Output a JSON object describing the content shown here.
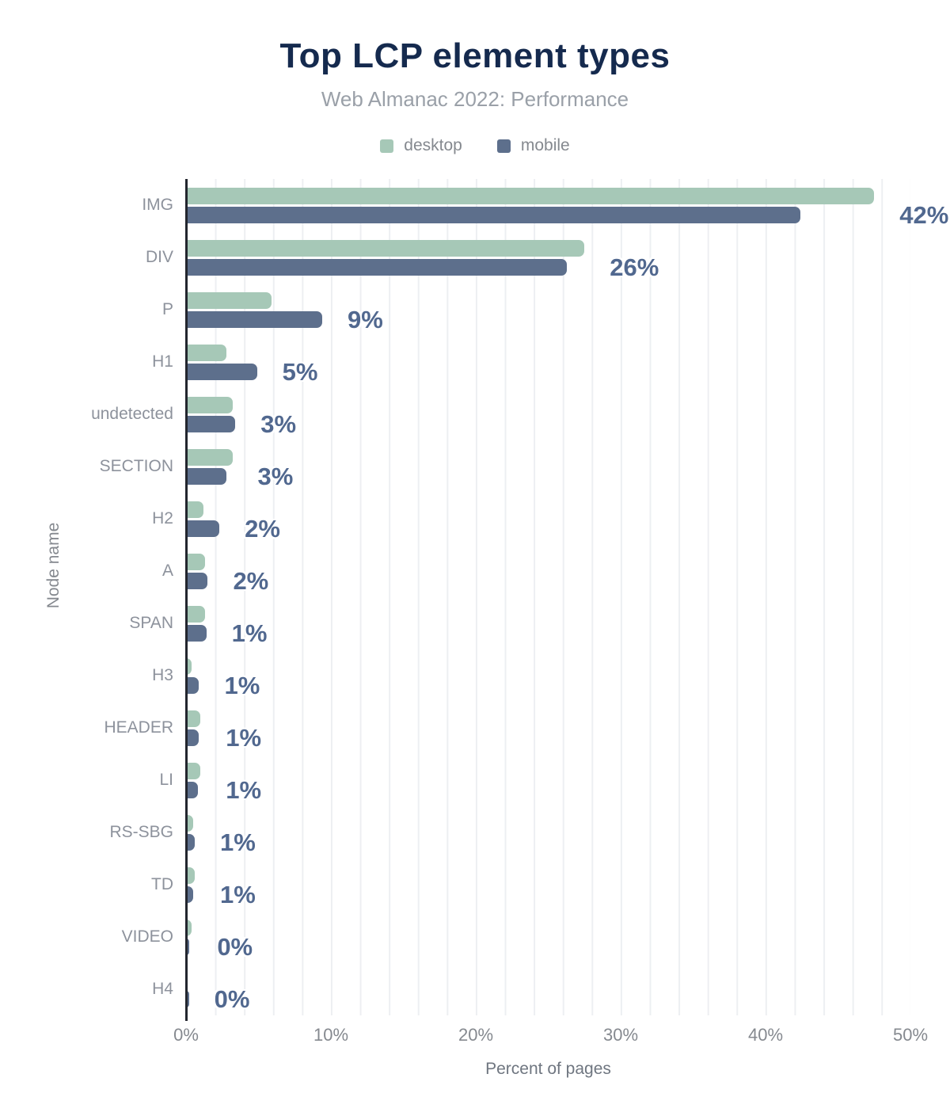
{
  "title": "Top LCP element types",
  "subtitle": "Web Almanac 2022: Performance",
  "legend": {
    "desktop": {
      "label": "desktop",
      "color": "#a6c8b7"
    },
    "mobile": {
      "label": "mobile",
      "color": "#5d6f8c"
    }
  },
  "x_axis": {
    "title": "Percent of pages",
    "ticks": [
      "0%",
      "10%",
      "20%",
      "30%",
      "40%",
      "50%"
    ]
  },
  "y_axis": {
    "title": "Node name"
  },
  "chart_data": {
    "type": "bar",
    "orientation": "horizontal",
    "title": "Top LCP element types",
    "subtitle": "Web Almanac 2022: Performance",
    "xlabel": "Percent of pages",
    "ylabel": "Node name",
    "xlim": [
      0,
      50
    ],
    "gridline_step_percent": 2,
    "legend_position": "top-center",
    "categories": [
      "IMG",
      "DIV",
      "P",
      "H1",
      "undetected",
      "SECTION",
      "H2",
      "A",
      "SPAN",
      "H3",
      "HEADER",
      "LI",
      "RS-SBG",
      "TD",
      "VIDEO",
      "H4"
    ],
    "series": [
      {
        "name": "desktop",
        "color": "#a6c8b7",
        "values": [
          47.5,
          27.5,
          5.9,
          2.8,
          3.2,
          3.2,
          1.2,
          1.3,
          1.3,
          0.4,
          1.0,
          1.0,
          0.5,
          0.6,
          0.4,
          0.1
        ]
      },
      {
        "name": "mobile",
        "color": "#5d6f8c",
        "values": [
          42.4,
          26.3,
          9.4,
          4.9,
          3.4,
          2.8,
          2.3,
          1.5,
          1.4,
          0.9,
          0.9,
          0.8,
          0.6,
          0.5,
          0.2,
          0.2
        ]
      }
    ],
    "value_labels": [
      "42%",
      "26%",
      "9%",
      "5%",
      "3%",
      "3%",
      "2%",
      "2%",
      "1%",
      "1%",
      "1%",
      "1%",
      "1%",
      "1%",
      "0%",
      "0%"
    ],
    "value_label_color": "#51688f"
  }
}
